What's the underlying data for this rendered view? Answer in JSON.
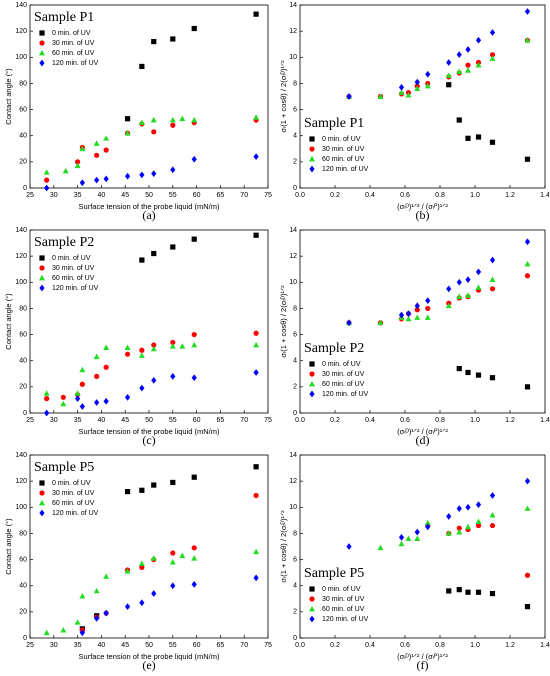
{
  "chart_data": [
    {
      "type": "scatter",
      "title": "Sample P1",
      "caption": "(a)",
      "xlabel": "Surface tension of the probe liquid (mN/m)",
      "ylabel": "Contact angle (°)",
      "xlim": [
        25,
        75
      ],
      "ylim": [
        0,
        140
      ],
      "xticks": [
        25,
        30,
        35,
        40,
        45,
        50,
        55,
        60,
        65,
        70,
        75
      ],
      "yticks": [
        0,
        20,
        40,
        60,
        80,
        100,
        120,
        140
      ],
      "legend": "upper left",
      "series": [
        {
          "name": "0 min. of UV",
          "color": "#000000",
          "marker": "square",
          "x": [
            45.5,
            48.5,
            51,
            55,
            59.5,
            72.5
          ],
          "values": [
            53,
            93,
            112,
            114,
            122,
            133
          ]
        },
        {
          "name": "30 min. of UV",
          "color": "#ff0000",
          "marker": "circle",
          "x": [
            28.5,
            35,
            36,
            39,
            41,
            45.5,
            48.5,
            51,
            55,
            59.5,
            72.5
          ],
          "values": [
            6,
            20,
            31,
            25,
            29,
            42,
            49,
            43,
            48,
            50,
            52
          ]
        },
        {
          "name": "60 min. of UV",
          "color": "#22dd22",
          "marker": "triangle",
          "x": [
            28.5,
            32.5,
            35,
            36,
            39,
            41,
            45.5,
            48.5,
            51,
            55,
            57,
            59.5,
            72.5
          ],
          "values": [
            12,
            13,
            17,
            30,
            34,
            38,
            42,
            50,
            52,
            52,
            53,
            52,
            54
          ]
        },
        {
          "name": "120 min. of UV",
          "color": "#0000ff",
          "marker": "diamond",
          "x": [
            28.5,
            36,
            39,
            41,
            45.5,
            48.5,
            51,
            55,
            59.5,
            72.5
          ],
          "values": [
            0,
            4,
            6,
            7,
            9,
            10,
            11,
            14,
            22,
            24
          ]
        }
      ]
    },
    {
      "type": "scatter",
      "title": "Sample P1",
      "caption": "(b)",
      "xlabel": "(σₗᴰ)¹ᐟ² / (σₗᴾ)¹ᐟ²",
      "ylabel": "σₗ(1 + cosθ) / 2(σₗᴰ)¹ᐟ²",
      "xlim": [
        0,
        1.4
      ],
      "ylim": [
        0,
        14
      ],
      "xticks": [
        {
          "value": 0,
          "label": "0.0"
        },
        0.2,
        0.4,
        0.6,
        0.8,
        {
          "value": 1,
          "label": "1.0"
        },
        1.2,
        1.4
      ],
      "yticks": [
        0,
        2,
        4,
        6,
        8,
        10,
        12,
        14
      ],
      "legend": "lower left",
      "series": [
        {
          "name": "0 min. of UV",
          "color": "#000000",
          "marker": "square",
          "x": [
            0.85,
            0.91,
            0.96,
            1.02,
            1.1,
            1.3
          ],
          "values": [
            7.9,
            5.2,
            3.8,
            3.9,
            3.5,
            2.2
          ]
        },
        {
          "name": "30 min. of UV",
          "color": "#ff0000",
          "marker": "circle",
          "x": [
            0.28,
            0.46,
            0.58,
            0.62,
            0.67,
            0.73,
            0.85,
            0.91,
            0.96,
            1.02,
            1.1,
            1.3
          ],
          "values": [
            7.0,
            7.0,
            7.2,
            7.3,
            7.8,
            8.0,
            8.5,
            8.8,
            9.4,
            9.6,
            10.2,
            11.3
          ]
        },
        {
          "name": "60 min. of UV",
          "color": "#22dd22",
          "marker": "triangle",
          "x": [
            0.28,
            0.46,
            0.58,
            0.62,
            0.67,
            0.73,
            0.85,
            0.91,
            0.96,
            1.02,
            1.1,
            1.3
          ],
          "values": [
            7.0,
            7.0,
            7.3,
            7.1,
            7.6,
            7.8,
            8.6,
            8.9,
            9.0,
            9.4,
            9.9,
            11.3
          ]
        },
        {
          "name": "120 min. of UV",
          "color": "#0000ff",
          "marker": "diamond",
          "x": [
            0.28,
            0.58,
            0.67,
            0.73,
            0.85,
            0.91,
            0.96,
            1.02,
            1.1,
            1.3
          ],
          "values": [
            7.0,
            7.7,
            8.1,
            8.7,
            9.6,
            10.2,
            10.6,
            11.3,
            11.9,
            13.5
          ]
        }
      ]
    },
    {
      "type": "scatter",
      "title": "Sample P2",
      "caption": "(c)",
      "xlabel": "Surface tension of the probe liquid (mN/m)",
      "ylabel": "Contact angle (°)",
      "xlim": [
        25,
        75
      ],
      "ylim": [
        0,
        140
      ],
      "xticks": [
        25,
        30,
        35,
        40,
        45,
        50,
        55,
        60,
        65,
        70,
        75
      ],
      "yticks": [
        0,
        20,
        40,
        60,
        80,
        100,
        120,
        140
      ],
      "legend": "upper left",
      "series": [
        {
          "name": "0 min. of UV",
          "color": "#000000",
          "marker": "square",
          "x": [
            48.5,
            51,
            55,
            59.5,
            72.5
          ],
          "values": [
            117,
            122,
            127,
            133,
            136
          ]
        },
        {
          "name": "30 min. of UV",
          "color": "#ff0000",
          "marker": "circle",
          "x": [
            28.5,
            32,
            35,
            36,
            39,
            41,
            45.5,
            48.5,
            51,
            55,
            59.5,
            72.5
          ],
          "values": [
            11,
            12,
            14,
            22,
            28,
            35,
            45,
            48,
            52,
            54,
            60,
            61
          ]
        },
        {
          "name": "60 min. of UV",
          "color": "#22dd22",
          "marker": "triangle",
          "x": [
            28.5,
            32,
            35,
            36,
            39,
            41,
            45.5,
            48.5,
            51,
            55,
            57,
            59.5,
            72.5
          ],
          "values": [
            15,
            7,
            15,
            33,
            43,
            50,
            50,
            44,
            49,
            51,
            51,
            52,
            52
          ]
        },
        {
          "name": "120 min. of UV",
          "color": "#0000ff",
          "marker": "diamond",
          "x": [
            28.5,
            35,
            36,
            39,
            41,
            45.5,
            48.5,
            51,
            55,
            59.5,
            72.5
          ],
          "values": [
            0,
            11,
            5,
            8,
            9,
            12,
            19,
            25,
            28,
            27,
            31
          ]
        }
      ]
    },
    {
      "type": "scatter",
      "title": "Sample P2",
      "caption": "(d)",
      "xlabel": "(σₗᴰ)¹ᐟ² / (σₗᴾ)¹ᐟ²",
      "ylabel": "σₗ(1 + cosθ) / 2(σₗᴰ)¹ᐟ²",
      "xlim": [
        0,
        1.4
      ],
      "ylim": [
        0,
        14
      ],
      "xticks": [
        {
          "value": 0,
          "label": "0.0"
        },
        0.2,
        0.4,
        0.6,
        0.8,
        {
          "value": 1,
          "label": "1.0"
        },
        1.2,
        1.4
      ],
      "yticks": [
        0,
        2,
        4,
        6,
        8,
        10,
        12,
        14
      ],
      "legend": "lower left",
      "series": [
        {
          "name": "0 min. of UV",
          "color": "#000000",
          "marker": "square",
          "x": [
            0.91,
            0.96,
            1.02,
            1.1,
            1.3
          ],
          "values": [
            3.4,
            3.1,
            2.9,
            2.7,
            2.0
          ]
        },
        {
          "name": "30 min. of UV",
          "color": "#ff0000",
          "marker": "circle",
          "x": [
            0.28,
            0.46,
            0.58,
            0.62,
            0.67,
            0.73,
            0.85,
            0.91,
            0.96,
            1.02,
            1.1,
            1.3
          ],
          "values": [
            6.9,
            6.9,
            7.2,
            7.6,
            7.9,
            8.0,
            8.4,
            8.8,
            8.9,
            9.4,
            9.5,
            10.5
          ]
        },
        {
          "name": "60 min. of UV",
          "color": "#22dd22",
          "marker": "triangle",
          "x": [
            0.28,
            0.46,
            0.58,
            0.62,
            0.67,
            0.73,
            0.85,
            0.91,
            0.96,
            1.02,
            1.1,
            1.3
          ],
          "values": [
            6.9,
            6.9,
            7.3,
            7.2,
            7.3,
            7.3,
            8.2,
            8.9,
            9.0,
            9.6,
            10.2,
            11.4
          ]
        },
        {
          "name": "120 min. of UV",
          "color": "#0000ff",
          "marker": "diamond",
          "x": [
            0.28,
            0.58,
            0.62,
            0.67,
            0.73,
            0.85,
            0.91,
            0.96,
            1.02,
            1.1,
            1.3
          ],
          "values": [
            6.9,
            7.5,
            7.6,
            8.2,
            8.6,
            9.5,
            10.0,
            10.2,
            10.8,
            11.7,
            13.1
          ]
        }
      ]
    },
    {
      "type": "scatter",
      "title": "Sample P5",
      "caption": "(e)",
      "xlabel": "Surface tension of the probe liquid (mN/m)",
      "ylabel": "Contact angle (°)",
      "xlim": [
        25,
        75
      ],
      "ylim": [
        0,
        140
      ],
      "xticks": [
        25,
        30,
        35,
        40,
        45,
        50,
        55,
        60,
        65,
        70,
        75
      ],
      "yticks": [
        0,
        20,
        40,
        60,
        80,
        100,
        120,
        140
      ],
      "legend": "upper left",
      "series": [
        {
          "name": "0 min. of UV",
          "color": "#000000",
          "marker": "square",
          "x": [
            36,
            39,
            45.5,
            48.5,
            51,
            55,
            59.5,
            72.5
          ],
          "values": [
            7,
            17,
            112,
            113,
            117,
            119,
            123,
            131
          ]
        },
        {
          "name": "30 min. of UV",
          "color": "#ff0000",
          "marker": "circle",
          "x": [
            36,
            39,
            41,
            45.5,
            48.5,
            51,
            55,
            59.5,
            72.5
          ],
          "values": [
            6,
            16,
            19,
            52,
            54,
            60,
            65,
            69,
            109
          ]
        },
        {
          "name": "60 min. of UV",
          "color": "#22dd22",
          "marker": "triangle",
          "x": [
            28.5,
            32,
            35,
            36,
            39,
            41,
            45.5,
            48.5,
            51,
            55,
            57,
            59.5,
            72.5
          ],
          "values": [
            4,
            6,
            12,
            32,
            36,
            47,
            51,
            57,
            61,
            58,
            63,
            61,
            66
          ]
        },
        {
          "name": "120 min. of UV",
          "color": "#0000ff",
          "marker": "diamond",
          "x": [
            36,
            39,
            41,
            45.5,
            48.5,
            51,
            55,
            59.5,
            72.5
          ],
          "values": [
            4,
            15,
            19,
            24,
            27,
            34,
            40,
            41,
            46
          ]
        }
      ]
    },
    {
      "type": "scatter",
      "title": "Sample P5",
      "caption": "(f)",
      "xlabel": "(σₗᴰ)¹ᐟ² / (σₗᴾ)¹ᐟ²",
      "ylabel": "σₗ(1 + cosθ) / 2(σₗᴰ)¹ᐟ²",
      "xlim": [
        0,
        1.4
      ],
      "ylim": [
        0,
        14
      ],
      "xticks": [
        {
          "value": 0,
          "label": "0.0"
        },
        0.2,
        0.4,
        0.6,
        0.8,
        {
          "value": 1,
          "label": "1.0"
        },
        1.2,
        1.4
      ],
      "yticks": [
        0,
        2,
        4,
        6,
        8,
        10,
        12,
        14
      ],
      "legend": "lower left",
      "series": [
        {
          "name": "0 min. of UV",
          "color": "#000000",
          "marker": "square",
          "x": [
            0.85,
            0.91,
            0.96,
            1.02,
            1.1,
            1.3
          ],
          "values": [
            3.6,
            3.7,
            3.5,
            3.5,
            3.4,
            2.4
          ]
        },
        {
          "name": "30 min. of UV",
          "color": "#ff0000",
          "marker": "circle",
          "x": [
            0.73,
            0.85,
            0.91,
            0.96,
            1.02,
            1.1,
            1.3
          ],
          "values": [
            8.6,
            8.0,
            8.4,
            8.3,
            8.6,
            8.6,
            4.8
          ]
        },
        {
          "name": "60 min. of UV",
          "color": "#22dd22",
          "marker": "triangle",
          "x": [
            0.46,
            0.58,
            0.62,
            0.67,
            0.73,
            0.85,
            0.91,
            0.96,
            1.02,
            1.1,
            1.3
          ],
          "values": [
            6.9,
            7.2,
            7.6,
            7.6,
            8.8,
            8.0,
            8.1,
            8.5,
            8.9,
            9.4,
            9.9
          ]
        },
        {
          "name": "120 min. of UV",
          "color": "#0000ff",
          "marker": "diamond",
          "x": [
            0.28,
            0.58,
            0.67,
            0.73,
            0.85,
            0.91,
            0.96,
            1.02,
            1.1,
            1.3
          ],
          "values": [
            7.0,
            7.7,
            8.1,
            8.5,
            9.3,
            9.9,
            10.0,
            10.2,
            10.9,
            12.0
          ]
        }
      ]
    }
  ]
}
